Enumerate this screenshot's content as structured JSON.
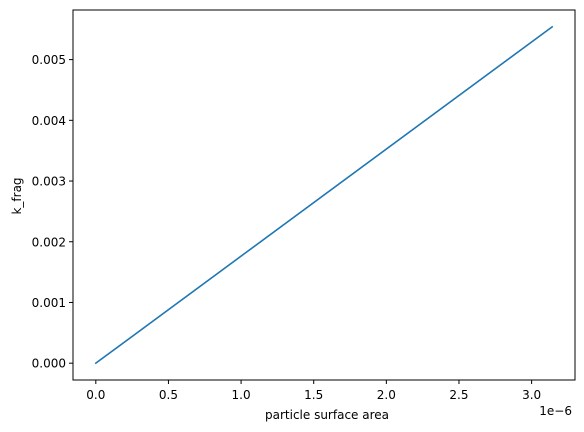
{
  "chart_data": {
    "type": "line",
    "title": "",
    "xlabel": "particle surface area",
    "ylabel": "k_frag",
    "x_offset_text": "1e−6",
    "xlim": [
      -1.5708e-07,
      3.29868e-06
    ],
    "ylim": [
      -0.000277,
      0.005817
    ],
    "xticks": [
      0.0,
      0.5,
      1.0,
      1.5,
      2.0,
      2.5,
      3.0
    ],
    "xtick_labels": [
      "0.0",
      "0.5",
      "1.0",
      "1.5",
      "2.0",
      "2.5",
      "3.0"
    ],
    "xtick_scale": 1e-06,
    "yticks": [
      0.0,
      0.001,
      0.002,
      0.003,
      0.004,
      0.005
    ],
    "ytick_labels": [
      "0.000",
      "0.001",
      "0.002",
      "0.003",
      "0.004",
      "0.005"
    ],
    "grid": false,
    "series": [
      {
        "name": "k_frag",
        "color": "#1f77b4",
        "x": [
          0.0,
          3.1416e-06
        ],
        "y": [
          0.0,
          0.00554
        ]
      }
    ]
  }
}
